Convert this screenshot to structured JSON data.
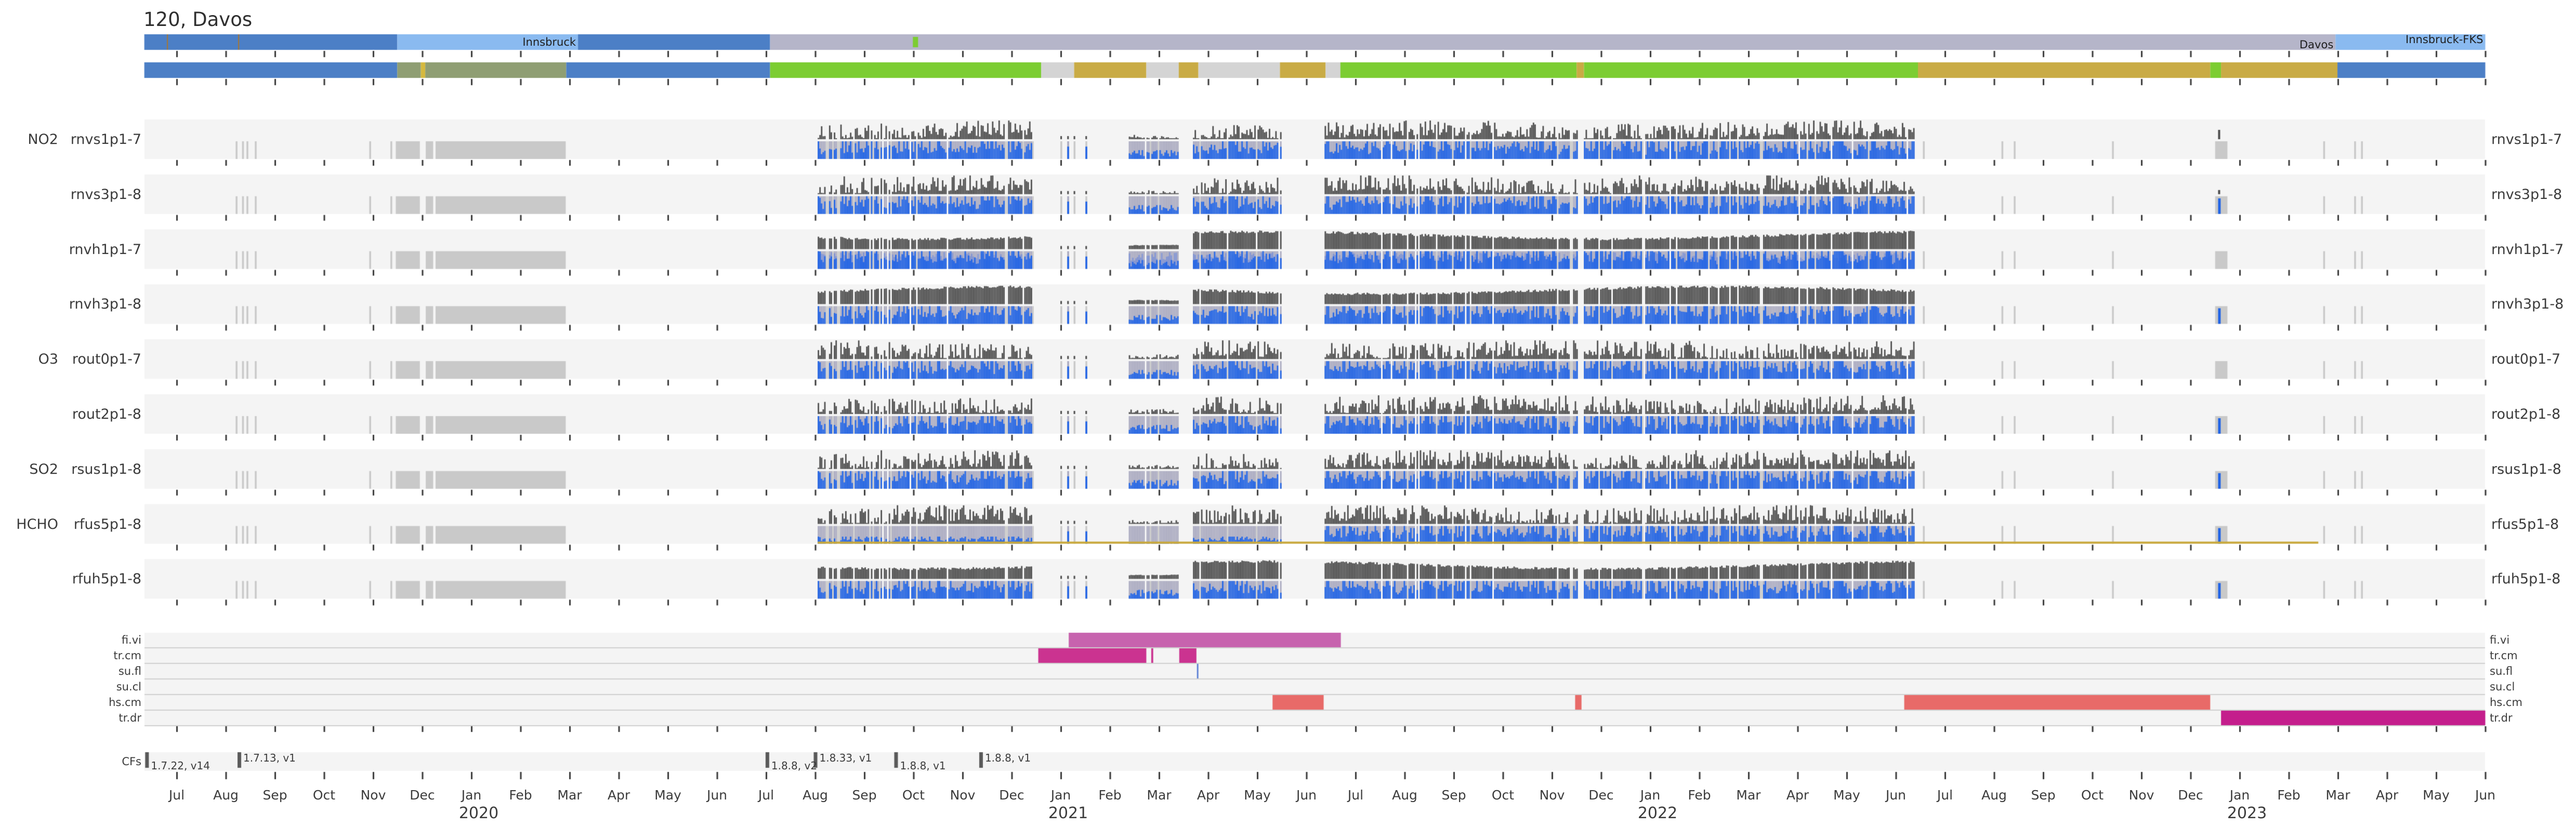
{
  "title": "120, Davos",
  "colors": {
    "steel_blue": "#4c7fc6",
    "light_blue": "#8abaf0",
    "lavender_bar": "#b5b5c9",
    "olive": "#8f9e73",
    "yellow_stripe": "#d5b93e",
    "green": "#7ccd32",
    "dark_yellow": "#c9ab45",
    "light_gray_seg": "#d4d4d4",
    "band_bg": "#f4f4f4",
    "gray_day": "#c9c9c9",
    "lavender_data": "#a9a9bf",
    "periwinkle": "#8093d2",
    "blue": "#1f63e6",
    "dark_bar": "#4c4c4c",
    "tick": "#3a3a3a",
    "orchid": "#c763ae",
    "deep_pink": "#cb3390",
    "salmon": "#e86a68",
    "magenta": "#c41e8c",
    "aux_blue_tick": "#5b7fd4",
    "cf_tick": "#5a5a5a",
    "separator_line": "#cfcfcf",
    "yellow_line": "#c9a93c",
    "bar_separator": "#a87832"
  },
  "render_seed": 20230601,
  "chart_data": {
    "type": "timeline",
    "title": "120, Davos",
    "x_axis": {
      "start": "Jul 2019",
      "end": "Jun 2023",
      "tick_unit": "month",
      "month_labels": [
        "Jul",
        "Aug",
        "Sep",
        "Oct",
        "Nov",
        "Dec",
        "Jan",
        "Feb",
        "Mar",
        "Apr",
        "May",
        "Jun",
        "Jul",
        "Aug",
        "Sep",
        "Oct",
        "Nov",
        "Dec",
        "Jan",
        "Feb",
        "Mar",
        "Apr",
        "May",
        "Jun",
        "Jul",
        "Aug",
        "Sep",
        "Oct",
        "Nov",
        "Dec",
        "Jan",
        "Feb",
        "Mar",
        "Apr",
        "May",
        "Jun",
        "Jul",
        "Aug",
        "Sep",
        "Oct",
        "Nov",
        "Dec",
        "Jan",
        "Feb",
        "Mar",
        "Apr",
        "May",
        "Jun"
      ],
      "year_labels": [
        {
          "label": "2020",
          "month_index": 6
        },
        {
          "label": "2021",
          "month_index": 18
        },
        {
          "label": "2022",
          "month_index": 30
        },
        {
          "label": "2023",
          "month_index": 42
        }
      ]
    },
    "location_bar": {
      "segments": [
        {
          "from": -0.66,
          "to": 4.49,
          "color": "steel_blue",
          "label": ""
        },
        {
          "from": 4.49,
          "to": 8.17,
          "color": "light_blue",
          "label": "Innsbruck",
          "label_valign": "middle"
        },
        {
          "from": 8.17,
          "to": 12.08,
          "color": "steel_blue",
          "label": ""
        },
        {
          "from": 12.08,
          "to": 43.95,
          "color": "lavender_bar",
          "label": "Davos",
          "label_valign": "bottom"
        },
        {
          "from": 43.95,
          "to": 47.0,
          "color": "light_blue",
          "label": "Innsbruck-FKS",
          "label_valign": "top"
        }
      ],
      "separators_m": [
        -0.2,
        1.25
      ],
      "green_marker_m": 15.04
    },
    "operation_bar": {
      "segments": [
        {
          "from": -0.66,
          "to": 4.49,
          "color": "steel_blue"
        },
        {
          "from": 4.49,
          "to": 4.97,
          "color": "olive"
        },
        {
          "from": 4.97,
          "to": 5.06,
          "color": "yellow_stripe"
        },
        {
          "from": 5.06,
          "to": 7.93,
          "color": "olive"
        },
        {
          "from": 7.93,
          "to": 12.08,
          "color": "steel_blue"
        },
        {
          "from": 12.08,
          "to": 17.6,
          "color": "green"
        },
        {
          "from": 17.6,
          "to": 18.27,
          "color": "light_gray_seg"
        },
        {
          "from": 18.27,
          "to": 19.74,
          "color": "dark_yellow"
        },
        {
          "from": 19.74,
          "to": 20.4,
          "color": "light_gray_seg"
        },
        {
          "from": 20.4,
          "to": 20.8,
          "color": "dark_yellow"
        },
        {
          "from": 20.8,
          "to": 22.46,
          "color": "light_gray_seg"
        },
        {
          "from": 22.46,
          "to": 23.39,
          "color": "dark_yellow"
        },
        {
          "from": 23.39,
          "to": 23.69,
          "color": "light_gray_seg"
        },
        {
          "from": 23.69,
          "to": 28.5,
          "color": "green"
        },
        {
          "from": 28.5,
          "to": 28.65,
          "color": "dark_yellow"
        },
        {
          "from": 28.65,
          "to": 35.45,
          "color": "green"
        },
        {
          "from": 35.45,
          "to": 41.4,
          "color": "dark_yellow"
        },
        {
          "from": 41.4,
          "to": 41.62,
          "color": "green"
        },
        {
          "from": 41.62,
          "to": 43.99,
          "color": "dark_yellow"
        },
        {
          "from": 43.99,
          "to": 47.0,
          "color": "steel_blue"
        }
      ]
    },
    "instrument_rows": [
      {
        "species": "NO2",
        "label": "rnvs1p1-7",
        "style": "spiky",
        "blue_level": "high"
      },
      {
        "species": "",
        "label": "rnvs3p1-8",
        "style": "spiky",
        "blue_level": "high"
      },
      {
        "species": "",
        "label": "rnvh1p1-7",
        "style": "smooth",
        "blue_level": "mixed"
      },
      {
        "species": "",
        "label": "rnvh3p1-8",
        "style": "smooth",
        "blue_level": "high"
      },
      {
        "species": "O3",
        "label": "rout0p1-7",
        "style": "spiky",
        "blue_level": "high"
      },
      {
        "species": "",
        "label": "rout2p1-8",
        "style": "spiky",
        "blue_level": "high"
      },
      {
        "species": "SO2",
        "label": "rsus1p1-8",
        "style": "spiky",
        "blue_level": "high"
      },
      {
        "species": "HCHO",
        "label": "rfus5p1-8",
        "style": "spiky",
        "blue_level": "low_early",
        "yellow_line": {
          "from": 13.05,
          "to": 43.6
        }
      },
      {
        "species": "",
        "label": "rfuh5p1-8",
        "style": "smooth",
        "blue_level": "high"
      }
    ],
    "availability_segments": [
      {
        "type": "gray_ticks",
        "days": [
          1.2,
          1.33,
          1.42,
          1.59,
          3.92,
          4.35
        ]
      },
      {
        "type": "gray_block",
        "from": 4.46,
        "to": 4.95
      },
      {
        "type": "gray_block",
        "from": 5.07,
        "to": 5.22
      },
      {
        "type": "gray_block",
        "from": 5.27,
        "to": 7.92
      },
      {
        "type": "data",
        "from": 13.05,
        "to": 17.46
      },
      {
        "type": "sparse_days",
        "days": [
          17.99,
          18.13,
          18.26,
          18.5
        ]
      },
      {
        "type": "data_low",
        "from": 19.35,
        "to": 20.39
      },
      {
        "type": "data",
        "from": 20.69,
        "to": 22.49
      },
      {
        "type": "data",
        "from": 23.37,
        "to": 28.5
      },
      {
        "type": "data",
        "from": 28.65,
        "to": 35.37
      },
      {
        "type": "gray_ticks",
        "days": [
          35.55,
          37.15,
          37.4,
          39.4
        ]
      },
      {
        "type": "event_block",
        "from": 41.5,
        "to": 41.75,
        "blue_day": 41.56,
        "blue_rows": [
          1,
          3,
          5,
          6,
          7,
          8
        ]
      },
      {
        "type": "gray_ticks",
        "days": [
          43.7,
          44.33,
          44.47
        ]
      }
    ],
    "aux_rows": [
      {
        "label": "fi.vi",
        "bars": [
          {
            "from": 18.16,
            "to": 23.7,
            "color": "orchid"
          }
        ]
      },
      {
        "label": "tr.cm",
        "bars": [
          {
            "from": 17.54,
            "to": 19.74,
            "color": "deep_pink"
          },
          {
            "from": 19.84,
            "to": 19.88,
            "color": "deep_pink"
          },
          {
            "from": 20.41,
            "to": 20.76,
            "color": "deep_pink"
          }
        ]
      },
      {
        "label": "su.fl",
        "bars": [
          {
            "from": 20.77,
            "to": 20.8,
            "color": "aux_blue_tick"
          }
        ]
      },
      {
        "label": "su.cl",
        "bars": []
      },
      {
        "label": "hs.cm",
        "bars": [
          {
            "from": 22.31,
            "to": 23.35,
            "color": "salmon"
          },
          {
            "from": 28.47,
            "to": 28.6,
            "color": "salmon"
          },
          {
            "from": 35.17,
            "to": 41.4,
            "color": "salmon"
          }
        ]
      },
      {
        "label": "tr.dr",
        "bars": [
          {
            "from": 41.62,
            "to": 47.0,
            "color": "magenta"
          }
        ]
      }
    ],
    "cf_annotations": {
      "label": "CFs",
      "entries": [
        {
          "m": -0.61,
          "label": "1.7.22, v14",
          "pos": "below"
        },
        {
          "m": 1.27,
          "label": "1.7.13, v1",
          "pos": "above"
        },
        {
          "m": 12.02,
          "label": "1.8.8, v2",
          "pos": "below"
        },
        {
          "m": 13.0,
          "label": "1.8.33, v1",
          "pos": "above"
        },
        {
          "m": 14.64,
          "label": "1.8.8, v1",
          "pos": "below"
        },
        {
          "m": 16.37,
          "label": "1.8.8, v1",
          "pos": "above"
        }
      ]
    }
  }
}
